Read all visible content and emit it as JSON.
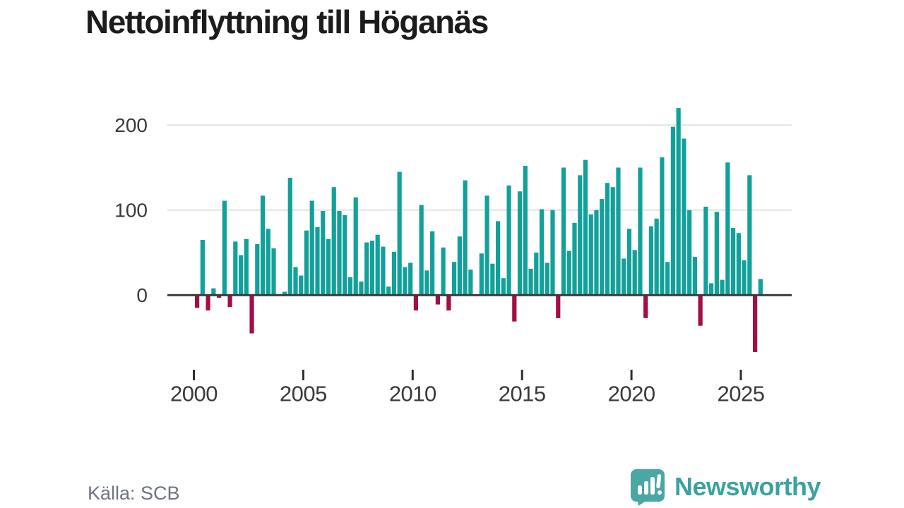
{
  "title": "Nettoinflyttning till Höganäs",
  "source": "Källa: SCB",
  "brand": {
    "name": "Newsworthy",
    "color": "#3ba39f",
    "icon": "speech-bubble-bar-chart-icon"
  },
  "colors": {
    "positive_bar": "#12a19a",
    "negative_bar": "#a40d45",
    "axis_line": "#3b3b3b",
    "gridline": "#e2e2e2",
    "axis_label": "#3a3a3a",
    "title_text": "#1c1c1c",
    "source_text": "#6f7580"
  },
  "chart_data": {
    "type": "bar",
    "title": "Nettoinflyttning till Höganäs",
    "xlabel": "",
    "ylabel": "",
    "start_year": 2000,
    "frequency": "quarterly",
    "yticks": [
      0,
      100,
      200
    ],
    "xticks": [
      2000,
      2005,
      2010,
      2015,
      2020,
      2025
    ],
    "ylim": [
      -80,
      235
    ],
    "grid": "horizontal",
    "legend": "none",
    "values": [
      -15,
      65,
      -18,
      8,
      -3,
      111,
      -14,
      63,
      47,
      66,
      -45,
      60,
      117,
      78,
      55,
      0,
      4,
      138,
      33,
      23,
      76,
      111,
      80,
      99,
      66,
      127,
      99,
      94,
      21,
      115,
      16,
      62,
      64,
      71,
      57,
      10,
      51,
      145,
      33,
      38,
      -18,
      106,
      29,
      75,
      -11,
      56,
      -18,
      39,
      69,
      135,
      30,
      0,
      49,
      117,
      37,
      87,
      20,
      129,
      -31,
      122,
      152,
      31,
      50,
      101,
      38,
      100,
      -27,
      150,
      52,
      85,
      141,
      159,
      95,
      100,
      113,
      132,
      127,
      150,
      43,
      78,
      53,
      150,
      -27,
      81,
      90,
      162,
      39,
      198,
      220,
      184,
      100,
      45,
      -36,
      104,
      14,
      98,
      18,
      156,
      79,
      73,
      41,
      141,
      -67,
      19
    ]
  }
}
